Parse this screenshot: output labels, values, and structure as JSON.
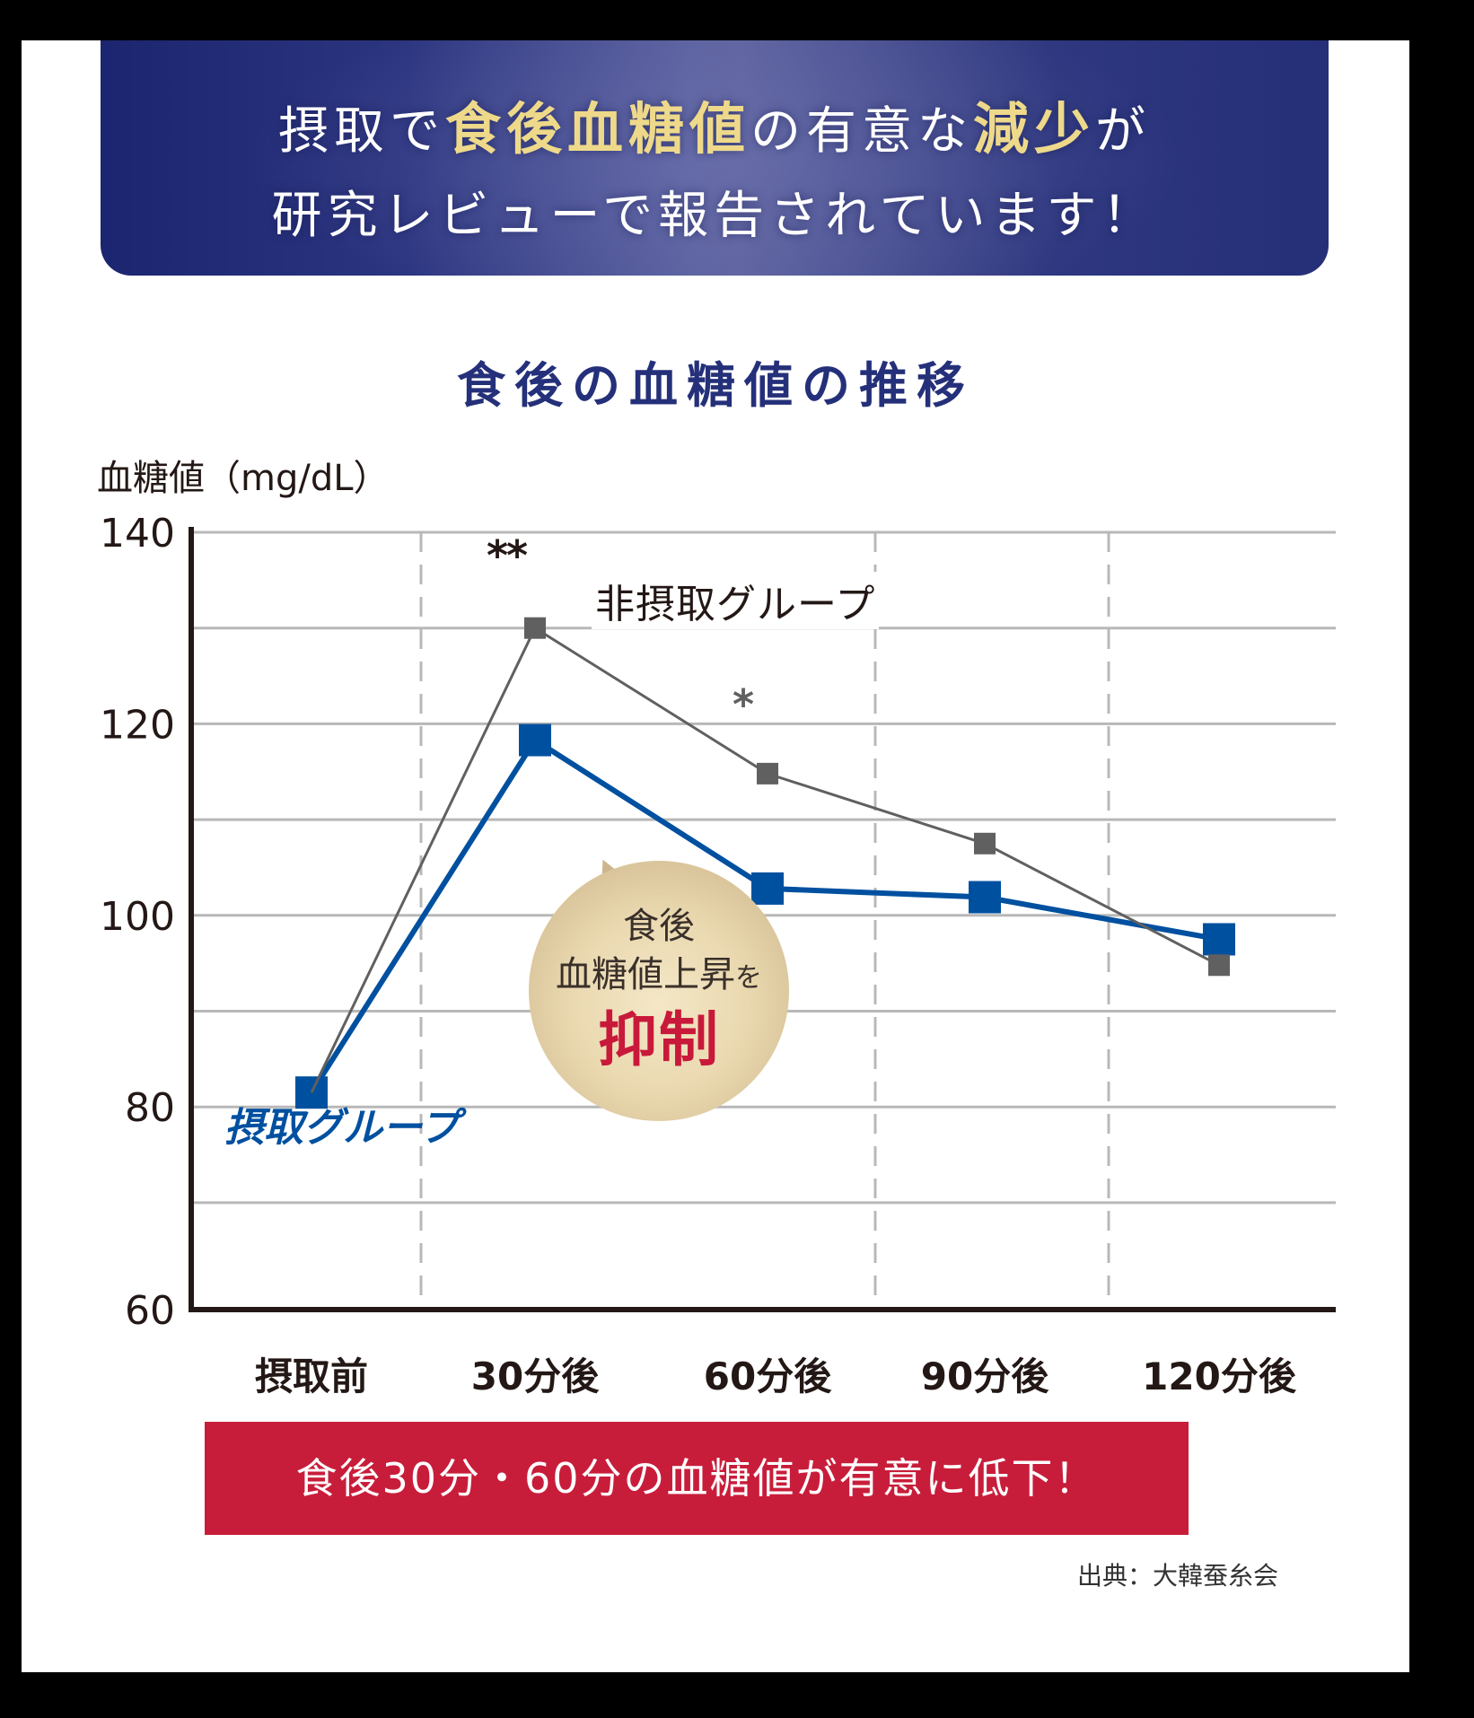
{
  "banner": {
    "line1": [
      {
        "text": "摂取で",
        "highlight": false
      },
      {
        "text": "食後血糖値",
        "highlight": true
      },
      {
        "text": "の有意な",
        "highlight": false
      },
      {
        "text": "減少",
        "highlight": true
      },
      {
        "text": "が",
        "highlight": false
      }
    ],
    "line2": "研究レビューで報告されています！",
    "colors": {
      "background": "#1d2670",
      "highlight": "#eed98a",
      "text": "#ffffff"
    }
  },
  "chart_title": "食後の血糖値の推移",
  "callout": {
    "line1": "食後",
    "line2_main": "血糖値上昇",
    "line2_suffix": "を",
    "line3": "抑制",
    "accent_color": "#c8193a"
  },
  "conclusion": "食後30分・60分の血糖値が有意に低下！",
  "source": "出典：大韓蚕糸会",
  "chart_data": {
    "type": "line",
    "title": "食後の血糖値の推移",
    "ylabel": "血糖値（mg/dL）",
    "xlabel": "",
    "categories": [
      "摂取前",
      "30分後",
      "60分後",
      "90分後",
      "120分後"
    ],
    "ylim": [
      60,
      140
    ],
    "yticks": [
      60,
      80,
      100,
      120,
      140
    ],
    "gridlines_every": 10,
    "grid": true,
    "series": [
      {
        "name": "非摂取グループ",
        "color": "#606060",
        "values": [
          81.5,
          130,
          114.8,
          107.5,
          94.8
        ],
        "marker": "small-square"
      },
      {
        "name": "摂取グループ",
        "color": "#0050a0",
        "values": [
          81.5,
          118.3,
          102.8,
          101.9,
          97.5
        ],
        "marker": "large-square"
      }
    ],
    "annotations": [
      {
        "category": "30分後",
        "text": "**"
      },
      {
        "category": "60分後",
        "text": "*"
      }
    ],
    "legend_position": "inline labels"
  }
}
